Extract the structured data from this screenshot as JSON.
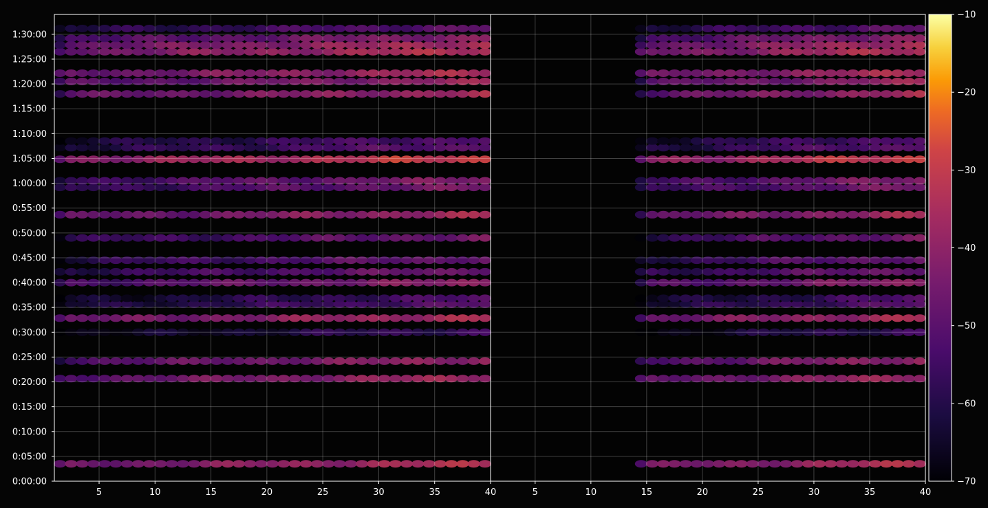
{
  "chart_data": {
    "type": "heatmap",
    "colormap": "inferno",
    "background": "#050505",
    "grid": true,
    "panels": [
      {
        "name": "left",
        "x_range": [
          1,
          40
        ],
        "x_ticks": [
          5,
          10,
          15,
          20,
          25,
          30,
          35,
          40
        ],
        "active_x_range": [
          1,
          39
        ],
        "y_range_seconds": [
          0,
          5640
        ]
      },
      {
        "name": "right",
        "x_range": [
          1,
          40
        ],
        "x_ticks": [
          5,
          10,
          15,
          20,
          25,
          30,
          35,
          40
        ],
        "active_x_range": [
          14,
          39
        ],
        "y_range_seconds": [
          0,
          5640
        ]
      }
    ],
    "y_ticks": [
      "0:00:00",
      "0:05:00",
      "0:10:00",
      "0:15:00",
      "0:20:00",
      "0:25:00",
      "0:30:00",
      "0:35:00",
      "0:40:00",
      "0:45:00",
      "0:50:00",
      "0:55:00",
      "1:00:00",
      "1:05:00",
      "1:10:00",
      "1:15:00",
      "1:20:00",
      "1:25:00",
      "1:30:00"
    ],
    "y_tick_seconds": [
      0,
      300,
      600,
      900,
      1200,
      1500,
      1800,
      2100,
      2400,
      2700,
      3000,
      3300,
      3600,
      3900,
      4200,
      4500,
      4800,
      5100,
      5400
    ],
    "colorbar": {
      "range": [
        -70,
        -10
      ],
      "ticks": [
        -10,
        -20,
        -30,
        -40,
        -50,
        -60,
        -70
      ],
      "tick_labels": [
        "−10",
        "−20",
        "−30",
        "−40",
        "−50",
        "−60",
        "−70"
      ]
    },
    "bands": [
      {
        "time_s": 210,
        "level": -33
      },
      {
        "time_s": 1240,
        "level": -36
      },
      {
        "time_s": 1450,
        "level": -38
      },
      {
        "time_s": 1800,
        "level": -55
      },
      {
        "time_s": 1970,
        "level": -34
      },
      {
        "time_s": 2140,
        "level": -50
      },
      {
        "time_s": 2210,
        "level": -52
      },
      {
        "time_s": 2400,
        "level": -40
      },
      {
        "time_s": 2530,
        "level": -45
      },
      {
        "time_s": 2670,
        "level": -46
      },
      {
        "time_s": 2940,
        "level": -45
      },
      {
        "time_s": 3220,
        "level": -36
      },
      {
        "time_s": 3550,
        "level": -44
      },
      {
        "time_s": 3630,
        "level": -42
      },
      {
        "time_s": 3890,
        "level": -28
      },
      {
        "time_s": 4030,
        "level": -48
      },
      {
        "time_s": 4110,
        "level": -50
      },
      {
        "time_s": 4680,
        "level": -36
      },
      {
        "time_s": 4830,
        "level": -38
      },
      {
        "time_s": 4930,
        "level": -34
      },
      {
        "time_s": 5190,
        "level": -32
      },
      {
        "time_s": 5270,
        "level": -34
      },
      {
        "time_s": 5350,
        "level": -40
      },
      {
        "time_s": 5470,
        "level": -48
      }
    ]
  }
}
